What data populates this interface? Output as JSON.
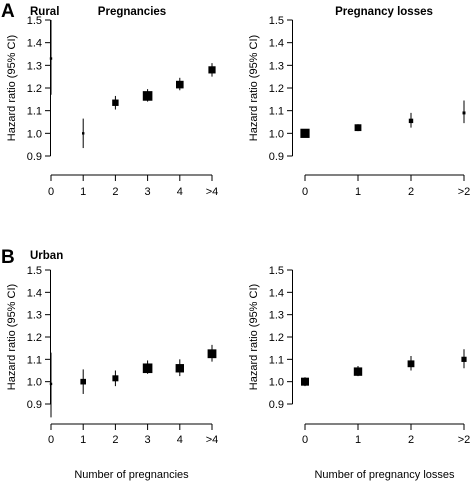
{
  "panel_labels": [
    "A",
    "B"
  ],
  "section_labels": [
    "Rural",
    "Urban"
  ],
  "chart_data": [
    {
      "type": "scatter",
      "group": "Rural",
      "title": "Pregnancies",
      "xlabel": "",
      "ylabel": "Hazard ratio (95% CI)",
      "categories": [
        "0",
        "1",
        "2",
        "3",
        "4",
        ">4"
      ],
      "values": [
        1.33,
        1.0,
        1.135,
        1.165,
        1.215,
        1.28
      ],
      "ci_low": [
        1.17,
        0.935,
        1.105,
        1.14,
        1.19,
        1.25
      ],
      "ci_high": [
        1.5,
        1.065,
        1.165,
        1.195,
        1.245,
        1.31
      ],
      "marker_weight": [
        0.05,
        0.05,
        0.55,
        0.95,
        0.7,
        0.65
      ],
      "yticks": [
        "0.9",
        "1.0",
        "1.1",
        "1.2",
        "1.3",
        "1.4",
        "1.5"
      ],
      "ylim": [
        0.9,
        1.5
      ],
      "grid": false
    },
    {
      "type": "scatter",
      "group": "Rural",
      "title": "Pregnancy losses",
      "xlabel": "",
      "ylabel": "Hazard ratio (95% CI)",
      "categories": [
        "0",
        "1",
        "2",
        ">2"
      ],
      "values": [
        1.0,
        1.025,
        1.055,
        1.09
      ],
      "ci_low": [
        0.99,
        1.01,
        1.025,
        1.045
      ],
      "ci_high": [
        1.01,
        1.04,
        1.09,
        1.145
      ],
      "marker_weight": [
        0.9,
        0.6,
        0.3,
        0.12
      ],
      "yticks": [
        "0.9",
        "1.0",
        "1.1",
        "1.2",
        "1.3",
        "1.4",
        "1.5"
      ],
      "ylim": [
        0.9,
        1.5
      ],
      "grid": false
    },
    {
      "type": "scatter",
      "group": "Urban",
      "title": "",
      "xlabel": "Number of pregnancies",
      "ylabel": "Hazard ratio (95% CI)",
      "categories": [
        "0",
        "1",
        "2",
        "3",
        "4",
        ">4"
      ],
      "values": [
        0.99,
        1.0,
        1.015,
        1.06,
        1.06,
        1.125
      ],
      "ci_low": [
        0.84,
        0.945,
        0.98,
        1.035,
        1.025,
        1.09
      ],
      "ci_high": [
        1.13,
        1.055,
        1.05,
        1.095,
        1.1,
        1.165
      ],
      "marker_weight": [
        0.05,
        0.45,
        0.5,
        0.95,
        0.8,
        0.85
      ],
      "yticks": [
        "0.9",
        "1.0",
        "1.1",
        "1.2",
        "1.3",
        "1.4",
        "1.5"
      ],
      "ylim": [
        0.9,
        1.5
      ],
      "grid": false
    },
    {
      "type": "scatter",
      "group": "Urban",
      "title": "",
      "xlabel": "Number of pregnancy losses",
      "ylabel": "Hazard ratio (95% CI)",
      "categories": [
        "0",
        "1",
        "2",
        ">2"
      ],
      "values": [
        1.0,
        1.045,
        1.08,
        1.1
      ],
      "ci_low": [
        0.98,
        1.025,
        1.05,
        1.06
      ],
      "ci_high": [
        1.02,
        1.07,
        1.115,
        1.145
      ],
      "marker_weight": [
        0.75,
        0.8,
        0.6,
        0.4
      ],
      "yticks": [
        "0.9",
        "1.0",
        "1.1",
        "1.2",
        "1.3",
        "1.4",
        "1.5"
      ],
      "ylim": [
        0.9,
        1.5
      ],
      "grid": false
    }
  ],
  "colors": {
    "ink": "#000000",
    "background": "#ffffff"
  }
}
